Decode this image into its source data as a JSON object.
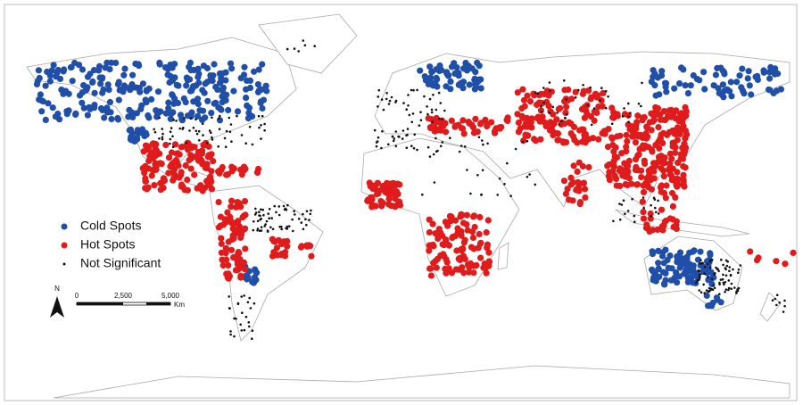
{
  "legend": {
    "items": [
      {
        "label": "Cold Spots",
        "color": "#1f4fa8"
      },
      {
        "label": "Hot Spots",
        "color": "#e01b1b"
      },
      {
        "label": "Not Significant",
        "color": "#111111"
      }
    ]
  },
  "scale_bar": {
    "ticks": [
      "0",
      "2,500",
      "5,000"
    ],
    "unit": "Km"
  },
  "north_arrow": {
    "label": "N"
  }
}
